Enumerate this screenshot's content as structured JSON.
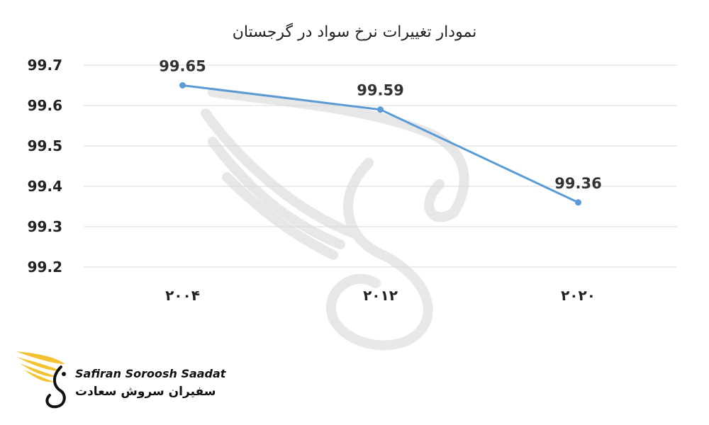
{
  "chart_data": {
    "type": "line",
    "title": "نمودار تغییرات نرخ سواد در گرجستان",
    "categories": [
      "۲۰۰۴",
      "۲۰۱۲",
      "۲۰۲۰"
    ],
    "values": [
      99.65,
      99.59,
      99.36
    ],
    "data_labels": [
      "99.65",
      "99.59",
      "99.36"
    ],
    "y_ticks": [
      "99.2",
      "99.3",
      "99.4",
      "99.5",
      "99.6",
      "99.7"
    ],
    "ylim": [
      99.2,
      99.7
    ],
    "grid": true,
    "legend": "none",
    "line_color": "#5b9bd5",
    "grid_color": "#d9d9d9"
  },
  "logo": {
    "text_en": "Safiran Soroosh Saadat",
    "text_fa": "سفیران سروش سعادت",
    "accent_color": "#f2c230"
  }
}
